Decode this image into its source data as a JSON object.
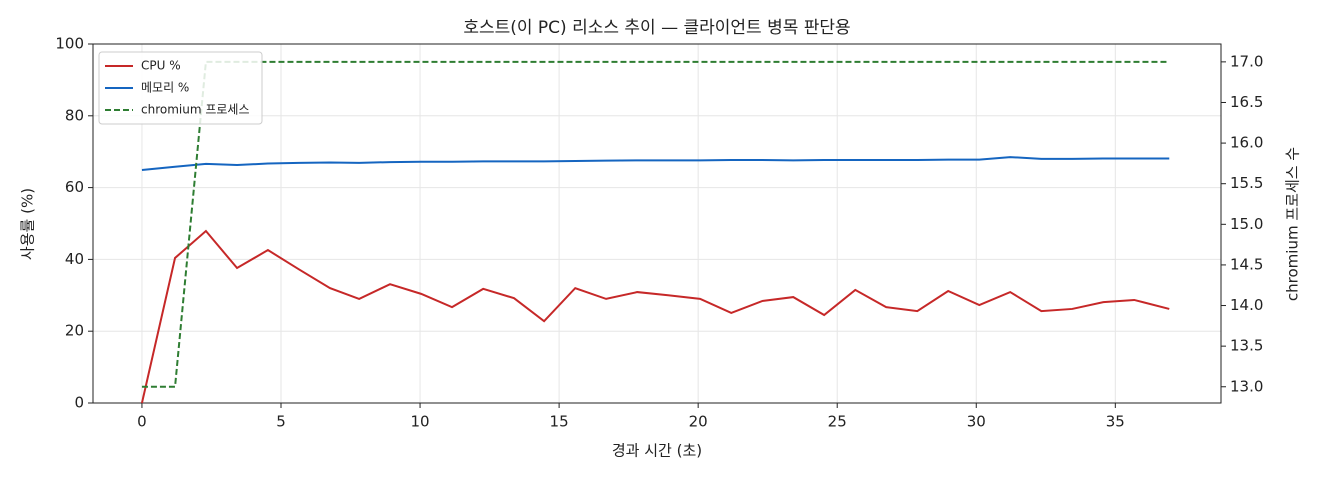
{
  "chart_data": {
    "type": "line",
    "title": "호스트(이 PC) 리소스 추이 — 클라이언트 병목 판단용",
    "x_label": "경과 시간 (초)",
    "y_label": "사용률 (%)",
    "y2_label": "chromium 프로세스 수",
    "x": [
      0,
      1.19,
      2.3,
      3.42,
      4.53,
      5.65,
      6.76,
      7.81,
      8.92,
      10.04,
      11.15,
      12.27,
      13.38,
      14.46,
      15.58,
      16.69,
      17.81,
      18.92,
      20.07,
      21.19,
      22.3,
      23.42,
      24.53,
      25.65,
      26.76,
      27.88,
      28.99,
      30.11,
      31.22,
      32.34,
      33.45,
      34.57,
      35.68,
      36.94
    ],
    "series": [
      {
        "name": "CPU %",
        "color": "#c62828",
        "values": [
          0,
          40.4,
          47.9,
          37.6,
          42.6,
          37.2,
          32.0,
          29.0,
          33.1,
          30.4,
          26.7,
          31.8,
          29.2,
          22.8,
          32.0,
          29.0,
          30.9,
          30.0,
          29.0,
          25.1,
          28.4,
          29.5,
          24.5,
          31.5,
          26.7,
          25.6,
          31.2,
          27.3,
          30.9,
          25.6,
          26.2,
          28.1,
          28.7,
          26.2
        ]
      },
      {
        "name": "메모리 %",
        "color": "#1565c0",
        "values": [
          64.9,
          65.8,
          66.6,
          66.3,
          66.7,
          66.9,
          67.0,
          66.9,
          67.1,
          67.2,
          67.2,
          67.3,
          67.3,
          67.3,
          67.4,
          67.5,
          67.6,
          67.6,
          67.6,
          67.7,
          67.7,
          67.6,
          67.7,
          67.7,
          67.7,
          67.7,
          67.8,
          67.8,
          68.5,
          68.0,
          68.0,
          68.1,
          68.1,
          68.1
        ]
      },
      {
        "name": "chromium 프로세스",
        "color": "#2e7d32",
        "linestyle": "dashed",
        "axis": "y2",
        "values": [
          13,
          13,
          17,
          17,
          17,
          17,
          17,
          17,
          17,
          17,
          17,
          17,
          17,
          17,
          17,
          17,
          17,
          17,
          17,
          17,
          17,
          17,
          17,
          17,
          17,
          17,
          17,
          17,
          17,
          17,
          17,
          17,
          17,
          17
        ]
      }
    ],
    "xlim": [
      -1.76,
      38.8
    ],
    "xticks": [
      0,
      5,
      10,
      15,
      20,
      25,
      30,
      35
    ],
    "ylim": [
      0,
      100
    ],
    "yticks": [
      0,
      20,
      40,
      60,
      80,
      100
    ],
    "y2lim": [
      12.8,
      17.22
    ],
    "y2ticks": [
      {
        "value": 13,
        "label": "13.0"
      },
      13.5,
      {
        "value": 14,
        "label": "14.0"
      },
      14.5,
      {
        "value": 15,
        "label": "15.0"
      },
      15.5,
      {
        "value": 16,
        "label": "16.0"
      },
      16.5,
      {
        "value": 17,
        "label": "17.0"
      }
    ],
    "grid": true,
    "legend": "upper-left"
  }
}
